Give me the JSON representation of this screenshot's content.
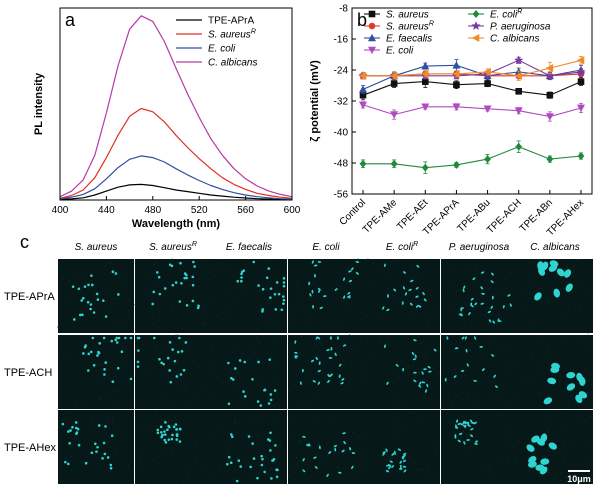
{
  "panels": {
    "a": "a",
    "b": "b",
    "c": "c"
  },
  "chart_data": [
    {
      "id": "a",
      "type": "line",
      "xlabel": "Wavelength (nm)",
      "ylabel": "PL intensity",
      "xlim": [
        400,
        600
      ],
      "xticks": [
        400,
        440,
        480,
        520,
        560,
        600
      ],
      "y_ticks_labeled": false,
      "legend_position": "top-right",
      "x": [
        400,
        410,
        420,
        430,
        440,
        450,
        460,
        470,
        480,
        490,
        500,
        510,
        520,
        530,
        540,
        550,
        560,
        570,
        580,
        590,
        600
      ],
      "series": [
        {
          "name": "TPE-APrA",
          "color": "#000000",
          "values": [
            0.5,
            1,
            2,
            4.5,
            8,
            11.5,
            13.5,
            14,
            13,
            11,
            9,
            7.5,
            6,
            4.5,
            3.5,
            2.5,
            1.8,
            1.2,
            0.8,
            0.5,
            0.3
          ]
        },
        {
          "name": "S. aureus^R",
          "color": "#e03020",
          "values": [
            1.5,
            4,
            9,
            20,
            38,
            58,
            75,
            82,
            79,
            70,
            58,
            47,
            37,
            28,
            20,
            14,
            9.5,
            6,
            4,
            2.5,
            1.5
          ]
        },
        {
          "name": "E. coli",
          "color": "#2f4fa3",
          "values": [
            1,
            2.5,
            5,
            10,
            19,
            29,
            36.5,
            39.5,
            38,
            34,
            28,
            22.5,
            17.5,
            13,
            9.5,
            6.5,
            4.5,
            3,
            2,
            1.2,
            0.8
          ]
        },
        {
          "name": "C. albicans",
          "color": "#b43aa8",
          "values": [
            3,
            8,
            18,
            40,
            78,
            120,
            153,
            165,
            160,
            142,
            118,
            95,
            74,
            55,
            40,
            28,
            19,
            12.5,
            8,
            5,
            3
          ]
        }
      ]
    },
    {
      "id": "b",
      "type": "line",
      "xlabel": "",
      "ylabel": "ζ potential (mV)",
      "ylim": [
        -56,
        -8
      ],
      "yticks": [
        -56,
        -48,
        -40,
        -32,
        -24,
        -16,
        -8
      ],
      "categories": [
        "Control",
        "TPE-AMe",
        "TPE-AEt",
        "TPE-APrA",
        "TPE-ABu",
        "TPE-ACH",
        "TPE-ABn",
        "TPE-AHex"
      ],
      "legend_position": "top",
      "series": [
        {
          "name": "S. aureus",
          "color": "#111111",
          "marker": "square",
          "values": [
            -30.5,
            -27.5,
            -27.0,
            -27.8,
            -27.5,
            -29.5,
            -30.5,
            -27.0
          ],
          "errors": [
            1.2,
            1.0,
            1.5,
            1.0,
            0.8,
            0.7,
            0.8,
            1.0
          ]
        },
        {
          "name": "S. aureus^R",
          "color": "#e03a2a",
          "marker": "circle",
          "values": [
            -25.5,
            -25.5,
            -25.0,
            -25.0,
            -25.5,
            -25.5,
            -25.5,
            -25.0
          ],
          "errors": [
            0.8,
            0.8,
            0.8,
            0.8,
            0.8,
            0.8,
            0.8,
            0.8
          ]
        },
        {
          "name": "E. faecalis",
          "color": "#2f4fa3",
          "marker": "triangle-up",
          "values": [
            -29.0,
            -25.5,
            -23.0,
            -22.8,
            -25.5,
            -24.5,
            -25.5,
            -24.0
          ],
          "errors": [
            1.0,
            1.0,
            0.8,
            1.5,
            1.0,
            1.0,
            1.0,
            1.2
          ]
        },
        {
          "name": "E. coli",
          "color": "#b04ac0",
          "marker": "triangle-down",
          "values": [
            -33.0,
            -35.5,
            -33.5,
            -33.5,
            -34.0,
            -34.5,
            -36.0,
            -33.8
          ],
          "errors": [
            0.8,
            1.2,
            0.6,
            0.8,
            0.6,
            0.8,
            1.2,
            1.2
          ]
        },
        {
          "name": "E. coli^R",
          "color": "#1f8a3a",
          "marker": "diamond",
          "values": [
            -48.2,
            -48.2,
            -49.2,
            -48.5,
            -47.0,
            -43.8,
            -47.0,
            -46.2
          ],
          "errors": [
            1.0,
            1.0,
            1.5,
            0.6,
            1.2,
            1.5,
            0.8,
            0.8
          ]
        },
        {
          "name": "P. aeruginosa",
          "color": "#7a3aa0",
          "marker": "star",
          "values": [
            -25.5,
            -25.5,
            -25.5,
            -25.5,
            -25.0,
            -21.5,
            -25.5,
            -24.5
          ],
          "errors": [
            0.8,
            0.8,
            0.8,
            0.8,
            0.8,
            0.8,
            0.8,
            0.8
          ]
        },
        {
          "name": "C. albicans",
          "color": "#f08a2a",
          "marker": "triangle-left",
          "values": [
            -25.5,
            -25.5,
            -25.0,
            -25.0,
            -24.5,
            -25.5,
            -23.5,
            -21.5
          ],
          "errors": [
            0.8,
            0.8,
            0.8,
            0.8,
            0.8,
            1.2,
            1.5,
            1.0
          ]
        }
      ]
    }
  ],
  "grid": {
    "columns": [
      {
        "name": "S. aureus",
        "sup": ""
      },
      {
        "name": "S. aureus",
        "sup": "R"
      },
      {
        "name": "E. faecalis",
        "sup": ""
      },
      {
        "name": "E. coli",
        "sup": ""
      },
      {
        "name": "E. coli",
        "sup": "R"
      },
      {
        "name": "P. aeruginosa",
        "sup": ""
      },
      {
        "name": "C. albicans",
        "sup": ""
      }
    ],
    "rows": [
      "TPE-APrA",
      "TPE-ACH",
      "TPE-AHex"
    ],
    "scale_bar": "10μm",
    "colors": {
      "background": "#061818",
      "cells": "#2fd4d0",
      "cells_dim": "#1a7f7e"
    }
  }
}
